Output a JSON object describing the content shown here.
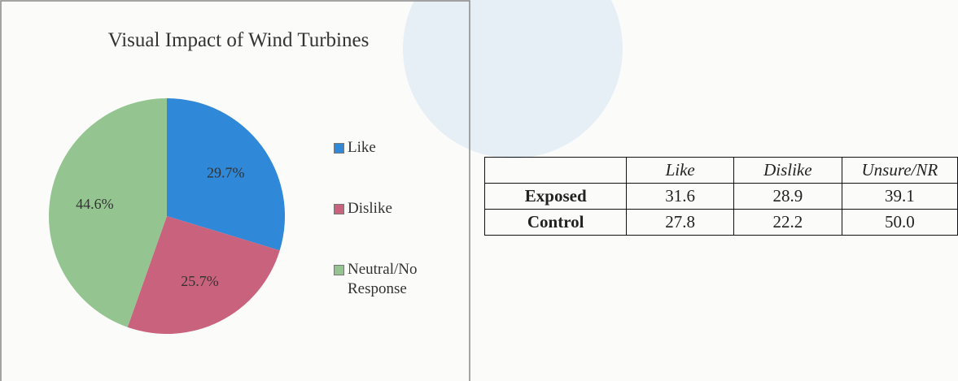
{
  "chart_data": {
    "type": "pie",
    "title": "Visual Impact of Wind Turbines",
    "categories": [
      "Like",
      "Dislike",
      "Neutral/No Response"
    ],
    "values": [
      29.7,
      25.7,
      44.6
    ],
    "value_labels": [
      "29.7%",
      "25.7%",
      "44.6%"
    ],
    "colors": [
      "#2f88d8",
      "#c9627c",
      "#94c590"
    ],
    "legend": "right"
  },
  "table": {
    "columns": [
      "Like",
      "Dislike",
      "Unsure/NR"
    ],
    "rows": [
      {
        "label": "Exposed",
        "values": [
          "31.6",
          "28.9",
          "39.1"
        ]
      },
      {
        "label": "Control",
        "values": [
          "27.8",
          "22.2",
          "50.0"
        ]
      }
    ]
  }
}
